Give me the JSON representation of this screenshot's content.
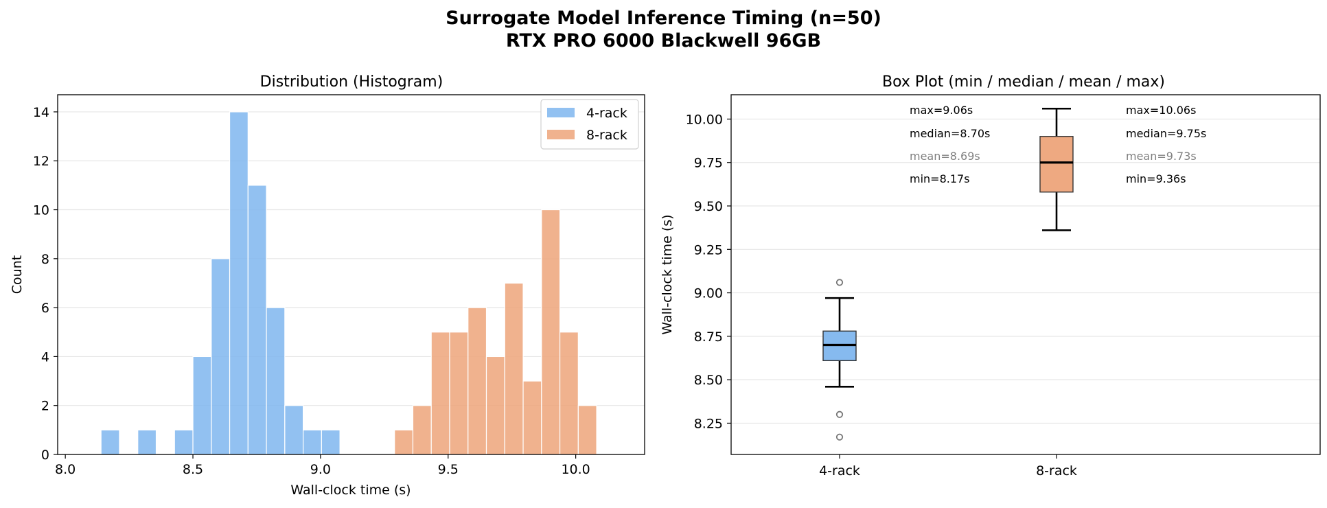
{
  "figure": {
    "title_line1": "Surrogate Model Inference Timing (n=50)",
    "title_line2": "RTX PRO 6000 Blackwell 96GB"
  },
  "colors": {
    "rack4": "#7fb6ee",
    "rack8": "#eda47a"
  },
  "chart_data": [
    {
      "type": "bar",
      "title": "Distribution (Histogram)",
      "xlabel": "Wall-clock time (s)",
      "ylabel": "Count",
      "xlim": [
        7.97,
        10.27
      ],
      "ylim": [
        0,
        14.7
      ],
      "xticks": [
        "8.0",
        "8.5",
        "9.0",
        "9.5",
        "10.0"
      ],
      "yticks": [
        "0",
        "2",
        "4",
        "6",
        "8",
        "10",
        "12",
        "14"
      ],
      "grid": "y",
      "legend": "top-right",
      "bin_width": 0.072,
      "series": [
        {
          "name": "4-rack",
          "color": "#7fb6ee",
          "bin_starts": [
            8.14,
            8.212,
            8.284,
            8.356,
            8.428,
            8.5,
            8.572,
            8.644,
            8.716,
            8.788,
            8.86,
            8.932,
            9.004
          ],
          "counts": [
            1,
            0,
            1,
            0,
            1,
            4,
            8,
            14,
            11,
            6,
            2,
            1,
            1
          ]
        },
        {
          "name": "8-rack",
          "color": "#eda47a",
          "bin_starts": [
            9.29,
            9.362,
            9.434,
            9.506,
            9.578,
            9.65,
            9.722,
            9.794,
            9.866,
            9.938,
            10.01
          ],
          "counts": [
            1,
            2,
            5,
            5,
            6,
            4,
            7,
            3,
            10,
            5,
            2
          ]
        }
      ]
    },
    {
      "type": "box",
      "title": "Box Plot (min / median / mean / max)",
      "xlabel": "",
      "ylabel": "Wall-clock time (s)",
      "categories": [
        "4-rack",
        "8-rack"
      ],
      "ylim": [
        8.07,
        10.14
      ],
      "yticks": [
        "8.25",
        "8.50",
        "8.75",
        "9.00",
        "9.25",
        "9.50",
        "9.75",
        "10.00"
      ],
      "grid": "y",
      "boxes": [
        {
          "category": "4-rack",
          "color": "#7fb6ee",
          "whisker_low": 8.46,
          "q1": 8.61,
          "median": 8.7,
          "q3": 8.78,
          "whisker_high": 8.97,
          "outliers": [
            9.06,
            8.3,
            8.17
          ]
        },
        {
          "category": "8-rack",
          "color": "#eda47a",
          "whisker_low": 9.36,
          "q1": 9.58,
          "median": 9.75,
          "q3": 9.9,
          "whisker_high": 10.06,
          "outliers": []
        }
      ],
      "annotations": [
        {
          "max": "max=9.06s",
          "median": "median=8.70s",
          "mean": "mean=8.69s",
          "min": "min=8.17s"
        },
        {
          "max": "max=10.06s",
          "median": "median=9.75s",
          "mean": "mean=9.73s",
          "min": "min=9.36s"
        }
      ]
    }
  ]
}
